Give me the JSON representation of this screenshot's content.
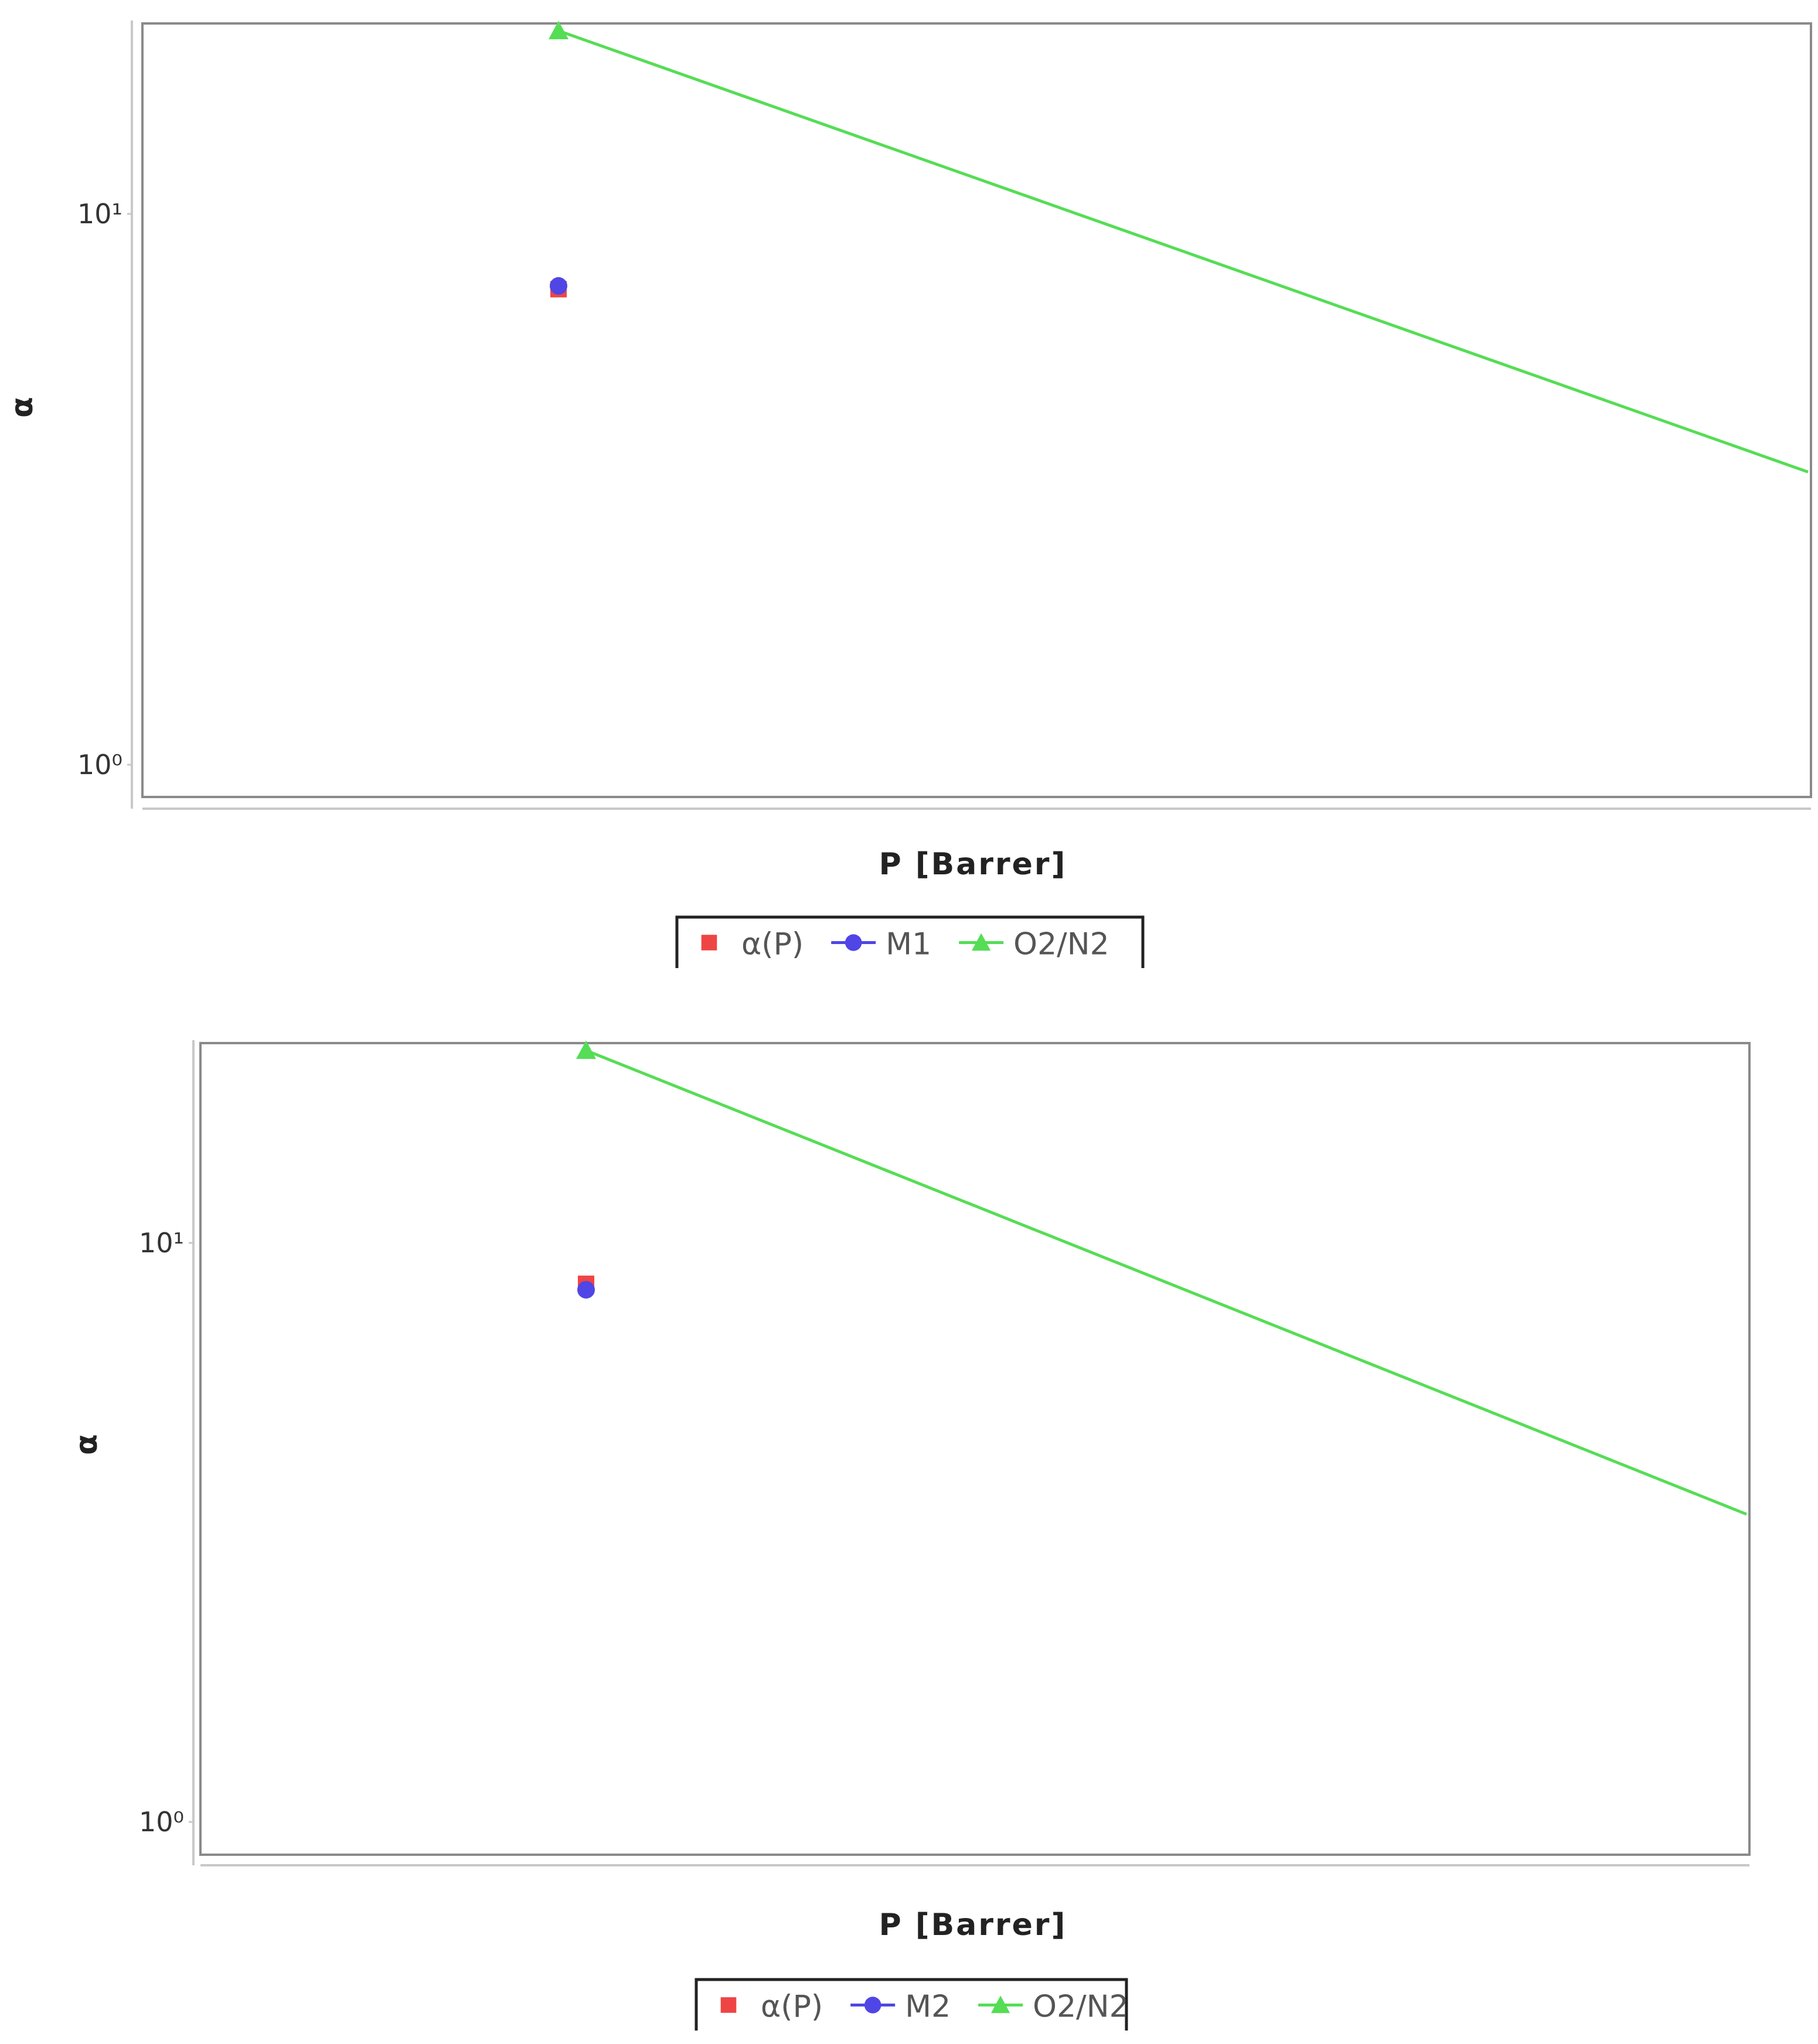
{
  "chart_data": [
    {
      "type": "scatter",
      "y_scale": "log",
      "xlabel": "P [Barrer]",
      "ylabel": "α",
      "y_ticks": [
        {
          "value": 1,
          "label": "10⁰"
        },
        {
          "value": 10,
          "label": "10¹"
        }
      ],
      "ylim": [
        1,
        28
      ],
      "grid": false,
      "legend_position": "bottom",
      "series": [
        {
          "name": "α(P)",
          "marker": "square",
          "color": "#ef4444",
          "line": false,
          "points": [
            {
              "x": null,
              "y": 7.3
            }
          ]
        },
        {
          "name": "M1",
          "marker": "circle",
          "color": "#4f46e5",
          "line": false,
          "points": [
            {
              "x": null,
              "y": 7.4
            }
          ]
        },
        {
          "name": "O2/N2",
          "marker": "triangle",
          "color": "#55dd55",
          "line": true,
          "points": [
            {
              "x": null,
              "y": 21.5
            }
          ]
        }
      ],
      "line_end_y": 3.4
    },
    {
      "type": "scatter",
      "y_scale": "log",
      "xlabel": "P [Barrer]",
      "ylabel": "α",
      "y_ticks": [
        {
          "value": 1,
          "label": "10⁰"
        },
        {
          "value": 10,
          "label": "10¹"
        }
      ],
      "ylim": [
        1,
        28
      ],
      "grid": false,
      "legend_position": "bottom",
      "series": [
        {
          "name": "α(P)",
          "marker": "square",
          "color": "#ef4444",
          "line": false,
          "points": [
            {
              "x": null,
              "y": 8.5
            }
          ]
        },
        {
          "name": "M2",
          "marker": "circle",
          "color": "#4f46e5",
          "line": false,
          "points": [
            {
              "x": null,
              "y": 8.3
            }
          ]
        },
        {
          "name": "O2/N2",
          "marker": "triangle",
          "color": "#55dd55",
          "line": true,
          "points": [
            {
              "x": null,
              "y": 21.5
            }
          ]
        }
      ],
      "line_end_y": 3.4
    }
  ]
}
